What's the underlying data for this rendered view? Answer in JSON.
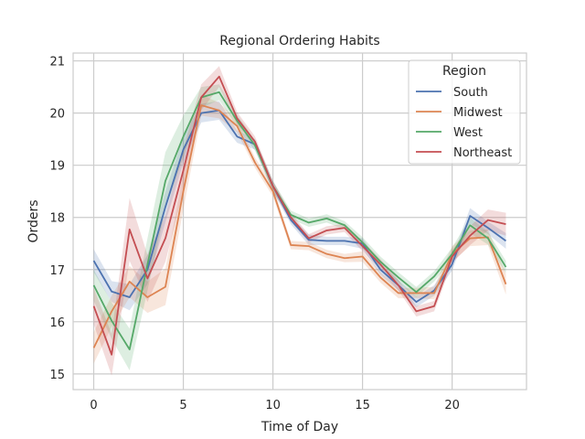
{
  "chart_data": {
    "type": "line",
    "title": "Regional Ordering Habits",
    "xlabel": "Time of Day",
    "ylabel": "Orders",
    "xlim": [
      -1.15,
      24.15
    ],
    "ylim": [
      14.7,
      21.15
    ],
    "x_ticks": [
      0,
      5,
      10,
      15,
      20
    ],
    "y_ticks": [
      15,
      16,
      17,
      18,
      19,
      20,
      21
    ],
    "grid": true,
    "legend": {
      "title": "Region",
      "position": "top-right"
    },
    "x": [
      0,
      1,
      2,
      3,
      4,
      5,
      6,
      7,
      8,
      9,
      10,
      11,
      12,
      13,
      14,
      15,
      16,
      17,
      18,
      19,
      20,
      21,
      22,
      23
    ],
    "series": [
      {
        "name": "South",
        "color": "#4c72b0",
        "values": [
          17.17,
          16.58,
          16.47,
          17.0,
          18.2,
          19.3,
          20.0,
          20.05,
          19.55,
          19.4,
          18.6,
          17.95,
          17.57,
          17.55,
          17.55,
          17.5,
          17.0,
          16.7,
          16.38,
          16.6,
          17.1,
          18.03,
          17.8,
          17.55
        ],
        "band": [
          0.22,
          0.2,
          0.25,
          0.28,
          0.3,
          0.25,
          0.18,
          0.18,
          0.12,
          0.1,
          0.1,
          0.08,
          0.1,
          0.08,
          0.08,
          0.1,
          0.1,
          0.1,
          0.1,
          0.1,
          0.12,
          0.15,
          0.12,
          0.15
        ]
      },
      {
        "name": "Midwest",
        "color": "#dd8452",
        "values": [
          15.5,
          16.2,
          16.77,
          16.47,
          16.67,
          18.5,
          20.15,
          20.05,
          19.75,
          19.05,
          18.5,
          17.47,
          17.45,
          17.3,
          17.22,
          17.25,
          16.85,
          16.55,
          16.55,
          16.55,
          17.3,
          17.6,
          17.62,
          16.72
        ],
        "band": [
          0.3,
          0.3,
          0.3,
          0.3,
          0.35,
          0.35,
          0.2,
          0.15,
          0.12,
          0.1,
          0.1,
          0.08,
          0.08,
          0.08,
          0.08,
          0.1,
          0.1,
          0.1,
          0.1,
          0.12,
          0.15,
          0.15,
          0.15,
          0.2
        ]
      },
      {
        "name": "West",
        "color": "#55a868",
        "values": [
          16.7,
          16.02,
          15.47,
          17.1,
          18.7,
          19.55,
          20.3,
          20.4,
          19.85,
          19.38,
          18.6,
          18.05,
          17.9,
          17.98,
          17.85,
          17.52,
          17.15,
          16.85,
          16.57,
          16.87,
          17.3,
          17.85,
          17.6,
          17.05
        ],
        "band": [
          0.3,
          0.35,
          0.4,
          0.5,
          0.55,
          0.4,
          0.2,
          0.15,
          0.12,
          0.1,
          0.1,
          0.08,
          0.08,
          0.08,
          0.08,
          0.1,
          0.1,
          0.1,
          0.1,
          0.1,
          0.12,
          0.15,
          0.12,
          0.12
        ]
      },
      {
        "name": "Northeast",
        "color": "#c44e52",
        "values": [
          16.3,
          15.37,
          17.77,
          16.83,
          17.6,
          18.9,
          20.3,
          20.7,
          19.9,
          19.45,
          18.6,
          18.0,
          17.6,
          17.75,
          17.8,
          17.45,
          17.1,
          16.7,
          16.2,
          16.3,
          17.25,
          17.65,
          17.95,
          17.87
        ],
        "band": [
          0.35,
          0.4,
          0.6,
          0.45,
          0.45,
          0.4,
          0.25,
          0.2,
          0.12,
          0.1,
          0.1,
          0.08,
          0.08,
          0.08,
          0.08,
          0.1,
          0.1,
          0.1,
          0.1,
          0.1,
          0.12,
          0.18,
          0.2,
          0.22
        ]
      }
    ]
  }
}
